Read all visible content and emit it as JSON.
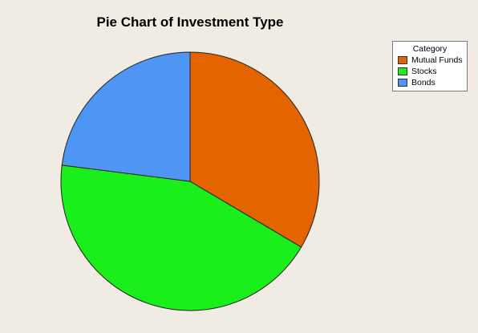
{
  "chart_data": {
    "type": "pie",
    "title": "Pie Chart of Investment Type",
    "categories": [
      "Mutual Funds",
      "Stocks",
      "Bonds"
    ],
    "values": [
      33.5,
      43.5,
      23.0
    ],
    "colors": [
      "#e46400",
      "#1bef1b",
      "#4f96f4"
    ],
    "legend": {
      "title": "Category",
      "position": "top-right"
    }
  }
}
